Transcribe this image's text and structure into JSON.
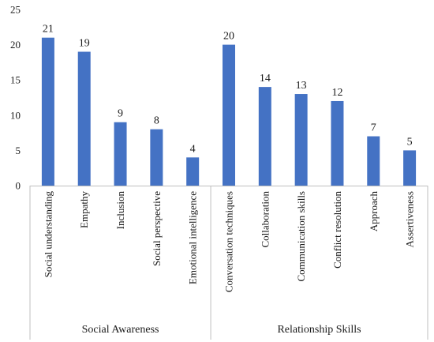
{
  "chart_data": {
    "type": "bar",
    "categories": [
      "Social understanding",
      "Empathy",
      "Inclusion",
      "Social perspective",
      "Emotional intelligence",
      "Conversation techniques",
      "Collaboration",
      "Communication skills",
      "Conflict resolution",
      "Approach",
      "Assertiveness"
    ],
    "values": [
      21,
      19,
      9,
      8,
      4,
      20,
      14,
      13,
      12,
      7,
      5
    ],
    "groups": [
      {
        "label": "Social Awareness",
        "categories": 5
      },
      {
        "label": "Relationship Skills",
        "categories": 6
      }
    ],
    "ylim": [
      0,
      25
    ],
    "yticks": [
      0,
      5,
      10,
      15,
      20,
      25
    ],
    "title": "",
    "xlabel": "",
    "ylabel": "",
    "grid": false,
    "legend": "none",
    "data_labels": true,
    "bar_color": "#4472C4"
  }
}
